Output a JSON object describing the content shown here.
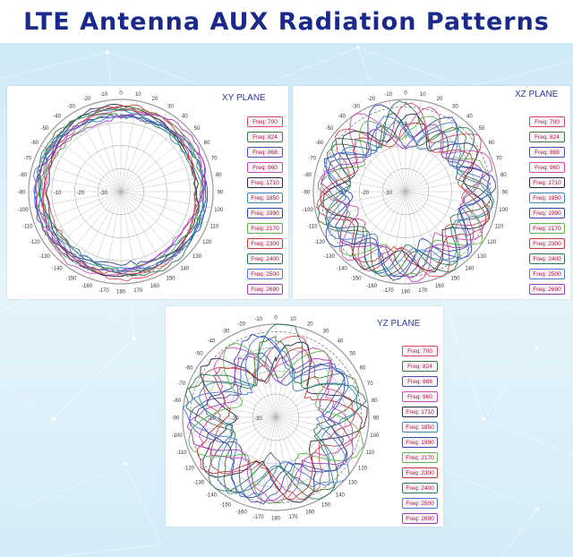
{
  "page": {
    "title": "LTE Antenna AUX Radiation Patterns"
  },
  "colors": {
    "title": "#1b2a8a",
    "background": "#d6edf9",
    "series": [
      "#d9475a",
      "#3b7a3a",
      "#4a4fb0",
      "#d04ab8",
      "#2a2a4a",
      "#3a8ab8",
      "#3048a8",
      "#5ab84a",
      "#c83a3a",
      "#2a7a5a",
      "#4a7ad8",
      "#a03ac0"
    ]
  },
  "chart_data": [
    {
      "type": "polar-line",
      "plane": "XY PLANE",
      "series_names": [
        "Freq: 700",
        "Freq: 824",
        "Freq: 868",
        "Freq: 960",
        "Freq: 1710",
        "Freq: 1850",
        "Freq: 1990",
        "Freq: 2170",
        "Freq: 2300",
        "Freq: 2400",
        "Freq: 2500",
        "Freq: 2690"
      ],
      "radial_ticks": [
        "-10",
        "-20",
        "-30"
      ],
      "angle_ticks": [
        "0",
        "10",
        "20",
        "30",
        "40",
        "50",
        "60",
        "70",
        "80",
        "90",
        "100",
        "110",
        "120",
        "130",
        "140",
        "150",
        "160",
        "170",
        "180",
        "-170",
        "-160",
        "-150",
        "-140",
        "-130",
        "-120",
        "-110",
        "-100",
        "-90",
        "-80",
        "-70",
        "-60",
        "-50",
        "-40",
        "-30",
        "-20",
        "-10"
      ],
      "shape": {
        "base": 0.87,
        "lobes": 2,
        "amp": 0.06,
        "jitter": 0.05
      }
    },
    {
      "type": "polar-line",
      "plane": "XZ PLANE",
      "series_names": [
        "Freq: 700",
        "Freq: 824",
        "Freq: 868",
        "Freq: 960",
        "Freq: 1710",
        "Freq: 1850",
        "Freq: 1990",
        "Freq: 2170",
        "Freq: 2300",
        "Freq: 2400",
        "Freq: 2500",
        "Freq: 2690"
      ],
      "radial_ticks": [
        "-10",
        "-20",
        "-30"
      ],
      "angle_ticks": [
        "0",
        "10",
        "20",
        "30",
        "40",
        "50",
        "60",
        "70",
        "80",
        "90",
        "100",
        "110",
        "120",
        "130",
        "140",
        "150",
        "160",
        "170",
        "180",
        "-170",
        "-160",
        "-150",
        "-140",
        "-130",
        "-120",
        "-110",
        "-100",
        "-90",
        "-80",
        "-70",
        "-60",
        "-50",
        "-40",
        "-30",
        "-20",
        "-10"
      ],
      "shape": {
        "base": 0.78,
        "lobes": 7,
        "amp": 0.16,
        "jitter": 0.06
      }
    },
    {
      "type": "polar-line",
      "plane": "YZ PLANE",
      "series_names": [
        "Freq: 700",
        "Freq: 824",
        "Freq: 868",
        "Freq: 960",
        "Freq: 1710",
        "Freq: 1850",
        "Freq: 1990",
        "Freq: 2170",
        "Freq: 2300",
        "Freq: 2400",
        "Freq: 2500",
        "Freq: 2690"
      ],
      "radial_ticks": [
        "-10",
        "-20",
        "-30"
      ],
      "angle_ticks": [
        "0",
        "10",
        "20",
        "30",
        "40",
        "50",
        "60",
        "70",
        "80",
        "90",
        "100",
        "110",
        "120",
        "130",
        "140",
        "150",
        "160",
        "170",
        "180",
        "-170",
        "-160",
        "-150",
        "-140",
        "-130",
        "-120",
        "-110",
        "-100",
        "-90",
        "-80",
        "-70",
        "-60",
        "-50",
        "-40",
        "-30",
        "-20",
        "-10"
      ],
      "shape": {
        "base": 0.72,
        "lobes": 5,
        "amp": 0.22,
        "jitter": 0.08
      }
    }
  ]
}
